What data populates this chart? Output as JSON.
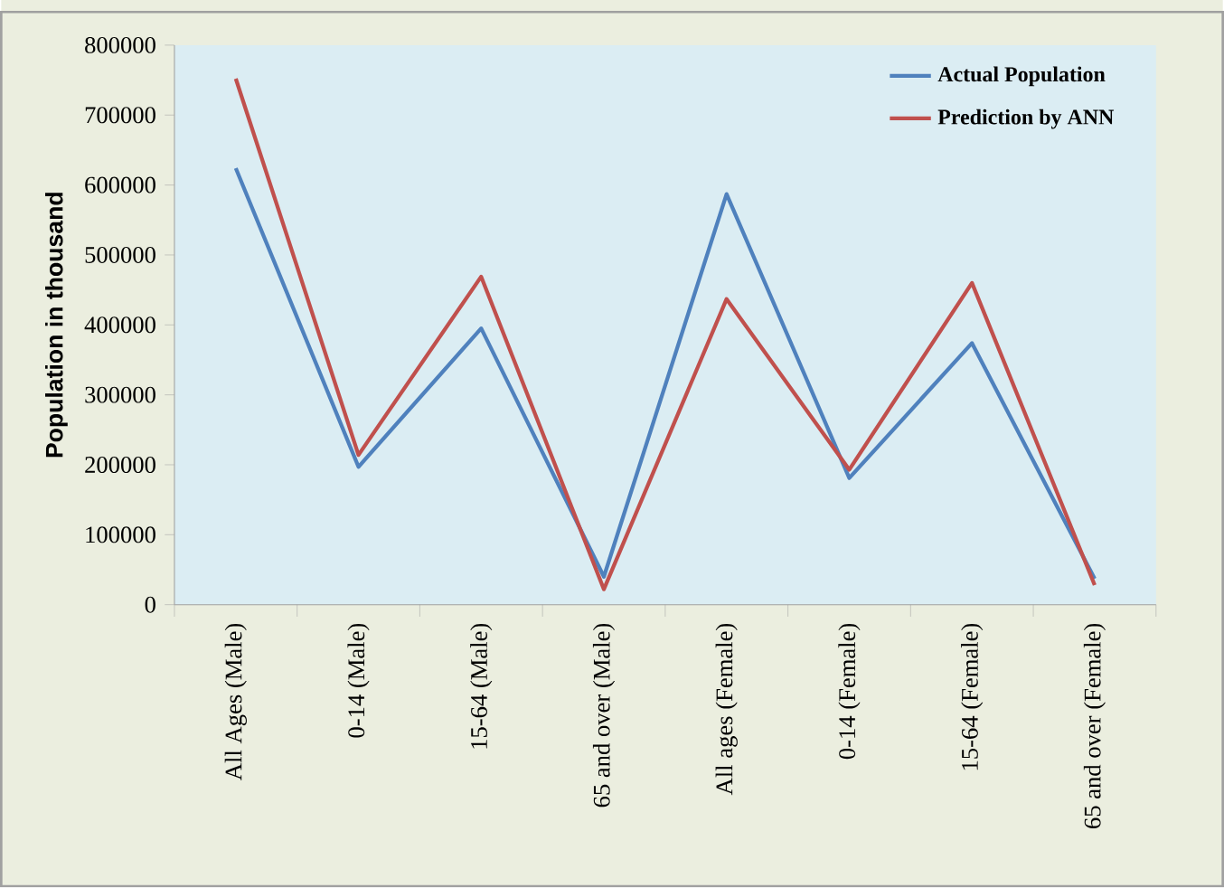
{
  "chart_data": {
    "type": "line",
    "ylabel": "Population in thousand",
    "categories": [
      "All Ages (Male)",
      "0-14 (Male)",
      "15-64 (Male)",
      "65 and over (Male)",
      "All ages (Female)",
      "0-14 (Female)",
      "15-64 (Female)",
      "65 and over (Female)"
    ],
    "series": [
      {
        "name": "Actual Population",
        "color": "#4f81bd",
        "values": [
          624000,
          197000,
          395000,
          40000,
          587000,
          181000,
          374000,
          37000
        ]
      },
      {
        "name": "Prediction by ANN",
        "color": "#c0504d",
        "values": [
          752000,
          214000,
          469000,
          22000,
          437000,
          193000,
          460000,
          28000
        ]
      }
    ],
    "ylim": [
      0,
      800000
    ],
    "yticks": [
      0,
      100000,
      200000,
      300000,
      400000,
      500000,
      600000,
      700000,
      800000
    ],
    "grid": false,
    "legend": "top right",
    "marker": "none",
    "line_style": "solid"
  }
}
